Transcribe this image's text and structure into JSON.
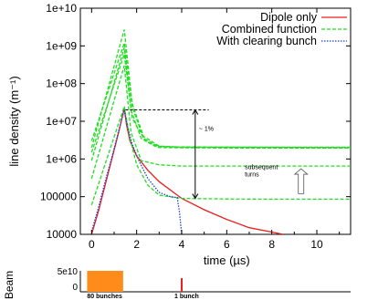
{
  "chart_data": [
    {
      "type": "line",
      "title": "",
      "xlabel": "time (µs)",
      "ylabel": "line density (m⁻¹)",
      "xlim": [
        -0.5,
        11.5
      ],
      "ylim": [
        10000,
        10000000000
      ],
      "yscale": "log",
      "x_ticks": [
        0,
        2,
        4,
        6,
        8,
        10
      ],
      "x_tick_labels": [
        "0",
        "2",
        "4",
        "6",
        "8",
        "10"
      ],
      "y_ticks": [
        10000,
        100000,
        1000000,
        10000000,
        100000000,
        1000000000,
        10000000000
      ],
      "y_tick_labels": [
        "10000",
        "100000",
        "1e+06",
        "1e+07",
        "1e+08",
        "1e+09",
        "1e+10"
      ],
      "legend_position": "top-right",
      "series": [
        {
          "name": "Dipole only",
          "color": "#e8201f",
          "dash": "solid",
          "points": [
            [
              0,
              10000
            ],
            [
              0.3,
              40000
            ],
            [
              0.6,
              200000
            ],
            [
              0.9,
              1000000
            ],
            [
              1.2,
              5000000
            ],
            [
              1.45,
              22000000
            ],
            [
              1.55,
              8000000
            ],
            [
              1.7,
              3000000
            ],
            [
              2.0,
              1200000
            ],
            [
              2.5,
              500000
            ],
            [
              3.0,
              250000
            ],
            [
              4.0,
              90000
            ],
            [
              5.0,
              45000
            ],
            [
              6.0,
              25000
            ],
            [
              7.0,
              15000
            ],
            [
              8.0,
              11500
            ],
            [
              8.5,
              10000
            ]
          ]
        },
        {
          "name": "Combined function",
          "color": "#22dd22",
          "dash": "dashed",
          "group": [
            [
              [
                0,
                60000
              ],
              [
                1.45,
                25000000
              ],
              [
                1.7,
                3500000
              ],
              [
                2.0,
                700000
              ],
              [
                2.5,
                200000
              ],
              [
                3.0,
                110000
              ],
              [
                4.0,
                90000
              ],
              [
                6.0,
                87000
              ],
              [
                8.0,
                86000
              ],
              [
                11.5,
                86000
              ]
            ],
            [
              [
                0,
                300000
              ],
              [
                1.45,
                300000000
              ],
              [
                1.75,
                5000000
              ],
              [
                2.2,
                900000
              ],
              [
                3.0,
                700000
              ],
              [
                4.0,
                650000
              ],
              [
                6.0,
                650000
              ],
              [
                11.5,
                650000
              ]
            ],
            [
              [
                0,
                900000
              ],
              [
                1.45,
                900000000
              ],
              [
                1.75,
                20000000
              ],
              [
                2.2,
                3500000
              ],
              [
                2.8,
                2200000
              ],
              [
                4.0,
                2000000
              ],
              [
                6.0,
                1950000
              ],
              [
                11.5,
                1950000
              ]
            ],
            [
              [
                0,
                2000000
              ],
              [
                1.45,
                2700000000
              ],
              [
                1.8,
                30000000
              ],
              [
                2.3,
                4000000
              ],
              [
                3.0,
                2200000
              ],
              [
                4.0,
                2050000
              ],
              [
                11.5,
                2050000
              ]
            ],
            [
              [
                0,
                3000000
              ],
              [
                1.45,
                1200000000
              ],
              [
                1.8,
                25000000
              ],
              [
                2.3,
                3500000
              ],
              [
                3.0,
                2100000
              ],
              [
                11.5,
                2000000
              ]
            ],
            [
              [
                0,
                1500000
              ],
              [
                1.45,
                600000000
              ],
              [
                1.8,
                12000000
              ],
              [
                2.4,
                3000000
              ],
              [
                3.0,
                2000000
              ],
              [
                11.5,
                1950000
              ]
            ]
          ]
        },
        {
          "name": "With clearing bunch",
          "color": "#1f3fd8",
          "dash": "dotted",
          "points": [
            [
              0,
              12000
            ],
            [
              0.3,
              50000
            ],
            [
              0.6,
              250000
            ],
            [
              0.9,
              1100000
            ],
            [
              1.2,
              5500000
            ],
            [
              1.45,
              20000000
            ],
            [
              1.6,
              7000000
            ],
            [
              1.8,
              2500000
            ],
            [
              2.1,
              900000
            ],
            [
              2.5,
              300000
            ],
            [
              3.0,
              130000
            ],
            [
              3.5,
              100000
            ],
            [
              3.8,
              95000
            ],
            [
              3.9,
              40000
            ],
            [
              4.0,
              10000
            ]
          ]
        }
      ],
      "annotations": {
        "dashed_reference_y": 20000000,
        "percent_note": "~ 1%",
        "subsequent_note_line1": "subsequent",
        "subsequent_note_line2": "turns"
      }
    },
    {
      "type": "bar",
      "title": "",
      "ylabel": "Beam",
      "y_tick_labels": [
        "5e10",
        "0"
      ],
      "labels": [
        "80 bunches",
        "1 bunch"
      ],
      "bunch_train": {
        "start": -0.2,
        "end": 1.4,
        "color": "#ff8c1a"
      },
      "single_bunch": {
        "at": 4.0,
        "color": "#e8201f"
      }
    }
  ]
}
